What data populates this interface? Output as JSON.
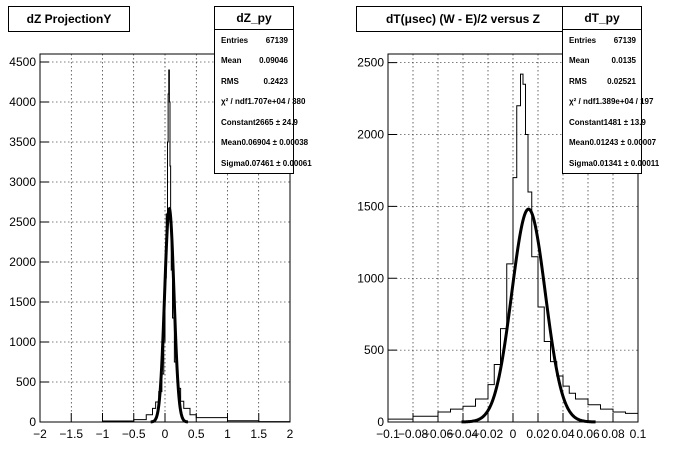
{
  "chart_data": [
    {
      "type": "histogram",
      "title": "dZ ProjectionY",
      "xlim": [
        -2,
        2
      ],
      "ylim": [
        0,
        4600
      ],
      "x_ticks": [
        "−2",
        "−1.5",
        "−1",
        "−0.5",
        "0",
        "0.5",
        "1",
        "1.5",
        "2"
      ],
      "y_ticks": [
        "0",
        "500",
        "1000",
        "1500",
        "2000",
        "2500",
        "3000",
        "3500",
        "4000",
        "4500"
      ],
      "grid": true,
      "stats": {
        "name": "dZ_py",
        "rows": [
          {
            "label": "Entries",
            "value": "67139"
          },
          {
            "label": "Mean",
            "value": "0.09046"
          },
          {
            "label": "RMS",
            "value": "0.2423"
          },
          {
            "label": "χ² / ndf",
            "value": "1.707e+04 / 380"
          },
          {
            "label": "Constant",
            "value": "2665 ± 24.9"
          },
          {
            "label": "Mean",
            "value": "0.06904 ± 0.00038"
          },
          {
            "label": "Sigma",
            "value": "0.07461 ± 0.00061"
          }
        ]
      },
      "histogram": {
        "x": [
          -2.0,
          -1.0,
          -0.5,
          -0.3,
          -0.2,
          -0.15,
          -0.1,
          -0.05,
          -0.02,
          0.0,
          0.02,
          0.04,
          0.05,
          0.06,
          0.07,
          0.08,
          0.09,
          0.1,
          0.12,
          0.15,
          0.2,
          0.25,
          0.3,
          0.4,
          0.5,
          1.0,
          1.5,
          2.0
        ],
        "y": [
          0,
          12,
          30,
          90,
          170,
          250,
          380,
          600,
          1000,
          1800,
          2600,
          3500,
          4100,
          4400,
          4000,
          3200,
          2500,
          1900,
          1300,
          750,
          420,
          260,
          170,
          90,
          55,
          15,
          5,
          0
        ]
      },
      "fit": {
        "type": "gaussian",
        "constant": 2665,
        "mean": 0.06904,
        "sigma": 0.07461
      }
    },
    {
      "type": "histogram",
      "title": "dT(μsec) (W - E)/2 versus Z",
      "xlim": [
        -0.1,
        0.1
      ],
      "ylim": [
        0,
        2560
      ],
      "x_ticks": [
        "−0.1",
        "−0.08",
        "−0.06",
        "−0.04",
        "−0.02",
        "0",
        "0.02",
        "0.04",
        "0.06",
        "0.08",
        "0.1"
      ],
      "y_ticks": [
        "0",
        "500",
        "1000",
        "1500",
        "2000",
        "2500"
      ],
      "grid": true,
      "stats": {
        "name": "dT_py",
        "rows": [
          {
            "label": "Entries",
            "value": "67139"
          },
          {
            "label": "Mean",
            "value": "0.0135"
          },
          {
            "label": "RMS",
            "value": "0.02521"
          },
          {
            "label": "χ² / ndf",
            "value": "1.389e+04 / 197"
          },
          {
            "label": "Constant",
            "value": "1481 ± 13.9"
          },
          {
            "label": "Mean",
            "value": "0.01243 ± 0.00007"
          },
          {
            "label": "Sigma",
            "value": "0.01341 ± 0.00011"
          }
        ]
      },
      "histogram": {
        "x": [
          -0.1,
          -0.08,
          -0.06,
          -0.05,
          -0.04,
          -0.03,
          -0.02,
          -0.015,
          -0.01,
          -0.005,
          0.0,
          0.003,
          0.006,
          0.008,
          0.01,
          0.012,
          0.015,
          0.02,
          0.025,
          0.03,
          0.035,
          0.04,
          0.045,
          0.05,
          0.06,
          0.07,
          0.08,
          0.09,
          0.1
        ],
        "y": [
          20,
          40,
          70,
          90,
          110,
          160,
          260,
          400,
          650,
          1100,
          1700,
          2200,
          2420,
          2350,
          2000,
          1600,
          1150,
          800,
          560,
          420,
          320,
          250,
          200,
          160,
          120,
          90,
          70,
          60,
          50
        ]
      },
      "fit": {
        "type": "gaussian",
        "constant": 1481,
        "mean": 0.01243,
        "sigma": 0.01341
      }
    }
  ]
}
